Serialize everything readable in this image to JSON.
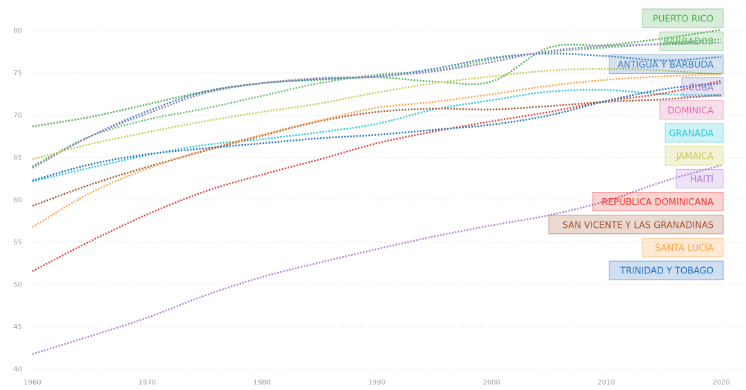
{
  "chart_data": {
    "type": "line",
    "title": "",
    "xlabel": "",
    "ylabel": "",
    "xlim": [
      1960,
      2020
    ],
    "ylim": [
      40,
      82
    ],
    "grid": true,
    "legend_position": "right",
    "x_ticks": [
      "1960",
      "1970",
      "1980",
      "1990",
      "2000",
      "2010",
      "2020"
    ],
    "y_ticks": [
      "40",
      "45",
      "50",
      "55",
      "60",
      "65",
      "70",
      "75",
      "80"
    ],
    "x": [
      1960,
      1965,
      1970,
      1975,
      1980,
      1985,
      1990,
      1995,
      2000,
      2005,
      2010,
      2015,
      2020
    ],
    "series": [
      {
        "name": "PUERTO RICO",
        "color": "#4caf50",
        "values": [
          68.7,
          69.8,
          71.3,
          72.8,
          73.8,
          74.2,
          74.5,
          74.0,
          74.0,
          78.0,
          78.3,
          79.1,
          80.1
        ]
      },
      {
        "name": "BARBADOS",
        "color": "#66bb6a",
        "values": [
          64.0,
          67.5,
          69.5,
          70.8,
          72.3,
          73.8,
          74.8,
          75.3,
          76.6,
          77.5,
          78.0,
          78.5,
          79.0
        ]
      },
      {
        "name": "ANTIGUA Y BARBUDA",
        "color": "#3f7fbf",
        "values": [
          63.8,
          67.5,
          70.5,
          72.8,
          73.8,
          74.3,
          74.6,
          75.5,
          76.8,
          77.3,
          77.0,
          76.5,
          76.9
        ]
      },
      {
        "name": "CUBA",
        "color": "#8e7cc3",
        "values": [
          63.8,
          67.5,
          70.2,
          72.6,
          73.8,
          74.4,
          74.6,
          75.2,
          76.3,
          77.6,
          78.2,
          78.4,
          78.6
        ]
      },
      {
        "name": "DOMINICA",
        "color": "#e06fa8",
        "values": [
          null,
          null,
          null,
          null,
          null,
          null,
          null,
          null,
          null,
          null,
          null,
          null,
          null
        ]
      },
      {
        "name": "GRANADA",
        "color": "#26c6da",
        "values": [
          62.2,
          63.8,
          65.3,
          66.5,
          67.2,
          68.0,
          69.0,
          70.7,
          71.8,
          72.8,
          73.0,
          72.5,
          72.4
        ]
      },
      {
        "name": "JAMAICA",
        "color": "#c8c84a",
        "values": [
          64.8,
          66.6,
          68.0,
          69.3,
          70.4,
          71.4,
          72.7,
          73.8,
          74.6,
          75.3,
          75.5,
          75.3,
          74.8
        ]
      },
      {
        "name": "HAITÍ",
        "color": "#b07cd6",
        "values": [
          41.8,
          43.9,
          46.1,
          48.7,
          50.9,
          52.6,
          54.2,
          55.7,
          57.0,
          58.2,
          59.9,
          62.2,
          64.1
        ]
      },
      {
        "name": "REPÚBLICA DOMINICANA",
        "color": "#e53935",
        "values": [
          51.6,
          55.1,
          58.3,
          61.0,
          63.0,
          64.8,
          66.7,
          68.1,
          69.3,
          70.4,
          71.7,
          72.6,
          74.1
        ]
      },
      {
        "name": "SAN VICENTE Y LAS GRANADINAS",
        "color": "#a0522d",
        "values": [
          59.3,
          61.8,
          63.9,
          65.8,
          67.6,
          69.3,
          70.4,
          70.8,
          70.7,
          71.1,
          71.6,
          71.9,
          72.4
        ]
      },
      {
        "name": "SANTA LUCÍA",
        "color": "#ff9f40",
        "values": [
          56.8,
          60.8,
          63.7,
          65.9,
          67.7,
          69.4,
          70.9,
          71.6,
          72.5,
          73.5,
          74.2,
          74.6,
          74.9
        ]
      },
      {
        "name": "TRINIDAD Y TOBAGO",
        "color": "#1e6fc0",
        "values": [
          62.3,
          64.2,
          65.4,
          66.1,
          66.7,
          67.3,
          67.7,
          68.3,
          68.9,
          70.0,
          71.7,
          73.1,
          73.8
        ]
      }
    ]
  }
}
